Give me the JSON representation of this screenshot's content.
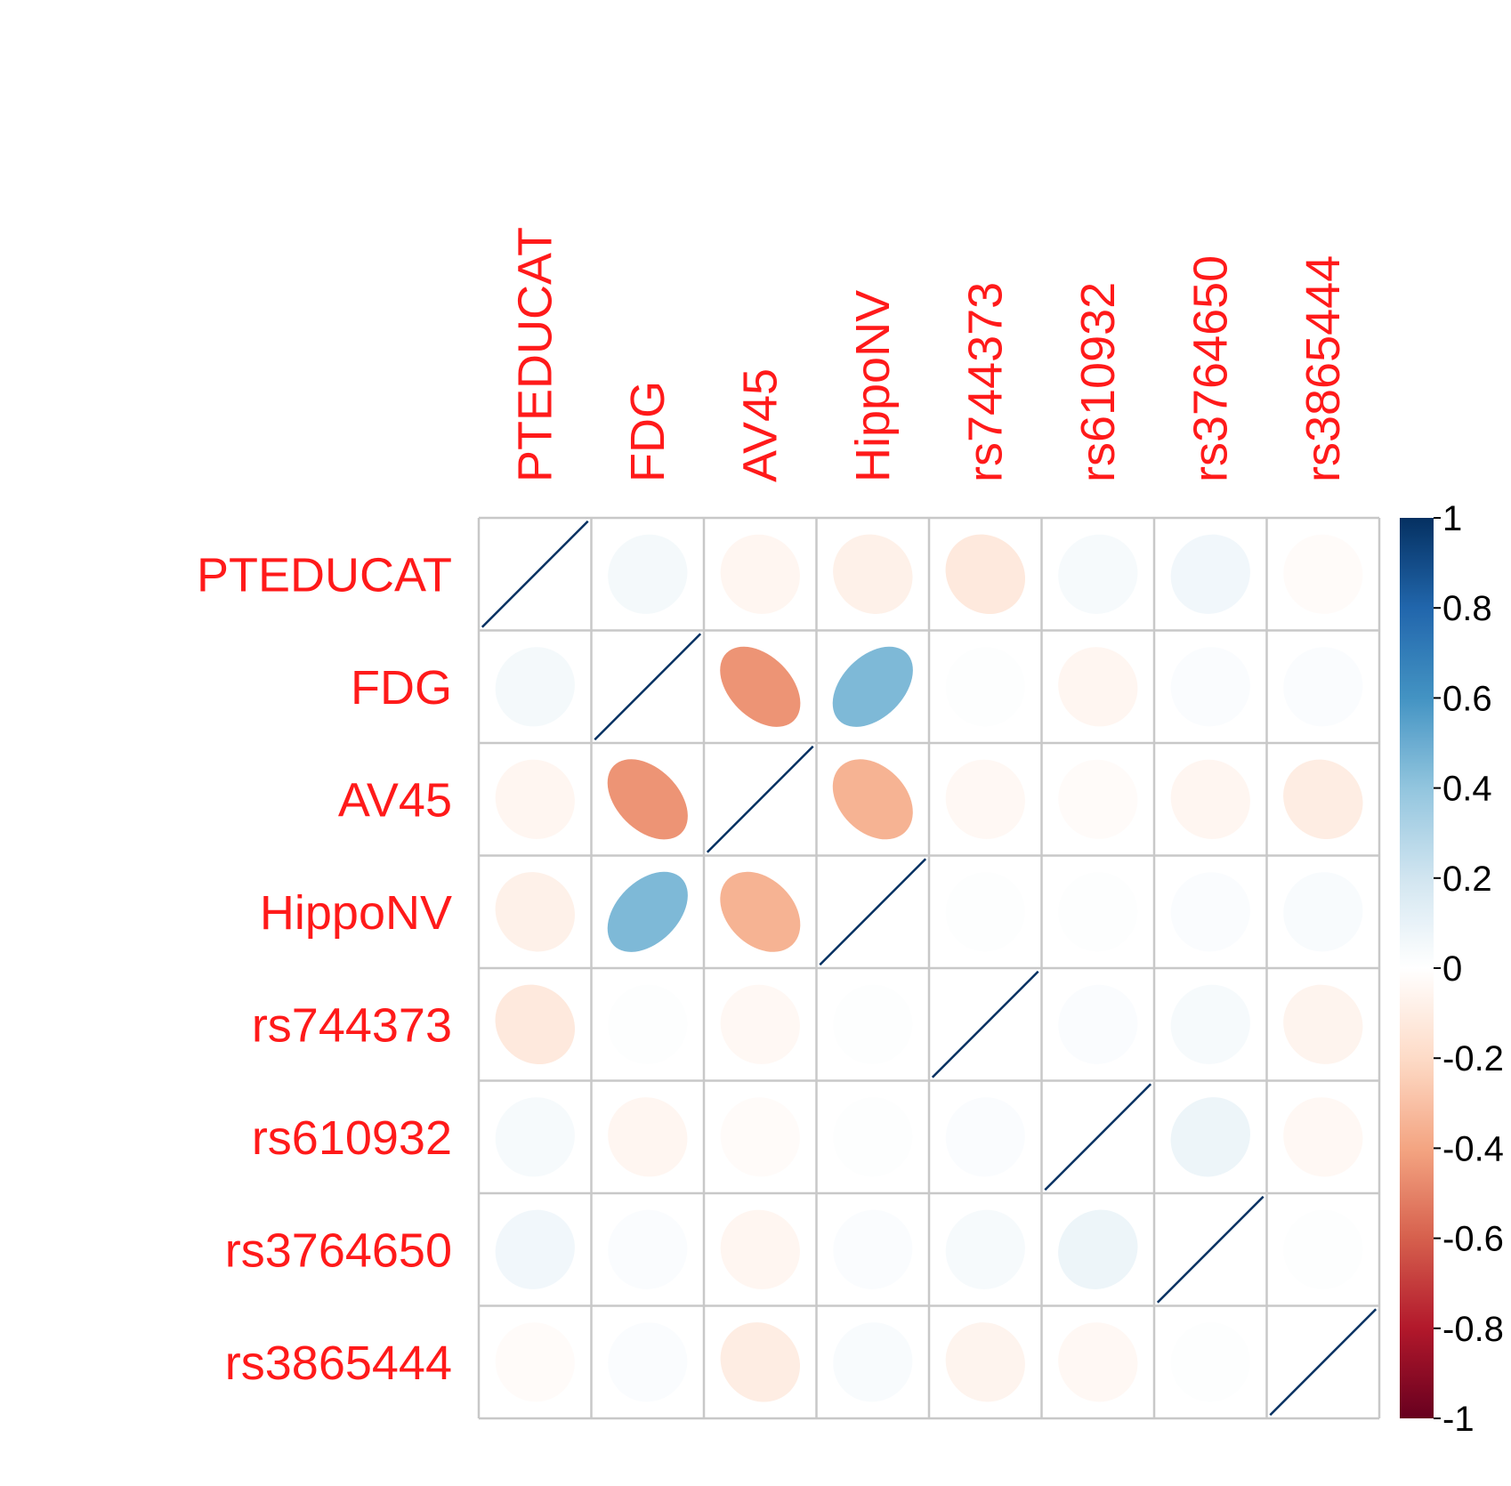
{
  "chart_data": {
    "type": "heatmap",
    "method": "ellipse",
    "variables": [
      "PTEDUCAT",
      "FDG",
      "AV45",
      "HippoNV",
      "rs744373",
      "rs610932",
      "rs3764650",
      "rs3865444"
    ],
    "matrix": [
      [
        1.0,
        0.05,
        -0.05,
        -0.08,
        -0.12,
        0.04,
        0.06,
        -0.02
      ],
      [
        0.05,
        1.0,
        -0.45,
        0.45,
        0.01,
        -0.05,
        0.02,
        0.02
      ],
      [
        -0.05,
        -0.45,
        1.0,
        -0.35,
        -0.04,
        -0.02,
        -0.05,
        -0.1
      ],
      [
        -0.08,
        0.45,
        -0.35,
        1.0,
        0.01,
        0.01,
        0.02,
        0.03
      ],
      [
        -0.12,
        0.01,
        -0.04,
        0.01,
        1.0,
        0.02,
        0.04,
        -0.06
      ],
      [
        0.04,
        -0.05,
        -0.02,
        0.01,
        0.02,
        1.0,
        0.08,
        -0.04
      ],
      [
        0.06,
        0.02,
        -0.05,
        0.02,
        0.04,
        0.08,
        1.0,
        0.01
      ],
      [
        -0.02,
        0.02,
        -0.1,
        0.03,
        -0.06,
        -0.04,
        0.01,
        1.0
      ]
    ],
    "colorbar": {
      "range": [
        -1,
        1
      ],
      "ticks": [
        "1",
        "0.8",
        "0.6",
        "0.4",
        "0.2",
        "0",
        "-0.2",
        "-0.4",
        "-0.6",
        "-0.8",
        "-1"
      ]
    },
    "palette": [
      "#67001F",
      "#B2182B",
      "#D6604D",
      "#F4A582",
      "#FDDBC7",
      "#FFFFFF",
      "#D1E5F0",
      "#92C5DE",
      "#4393C3",
      "#2166AC",
      "#053061"
    ],
    "label_color": "#ff1a1a",
    "grid_color": "#c8c8c8"
  }
}
